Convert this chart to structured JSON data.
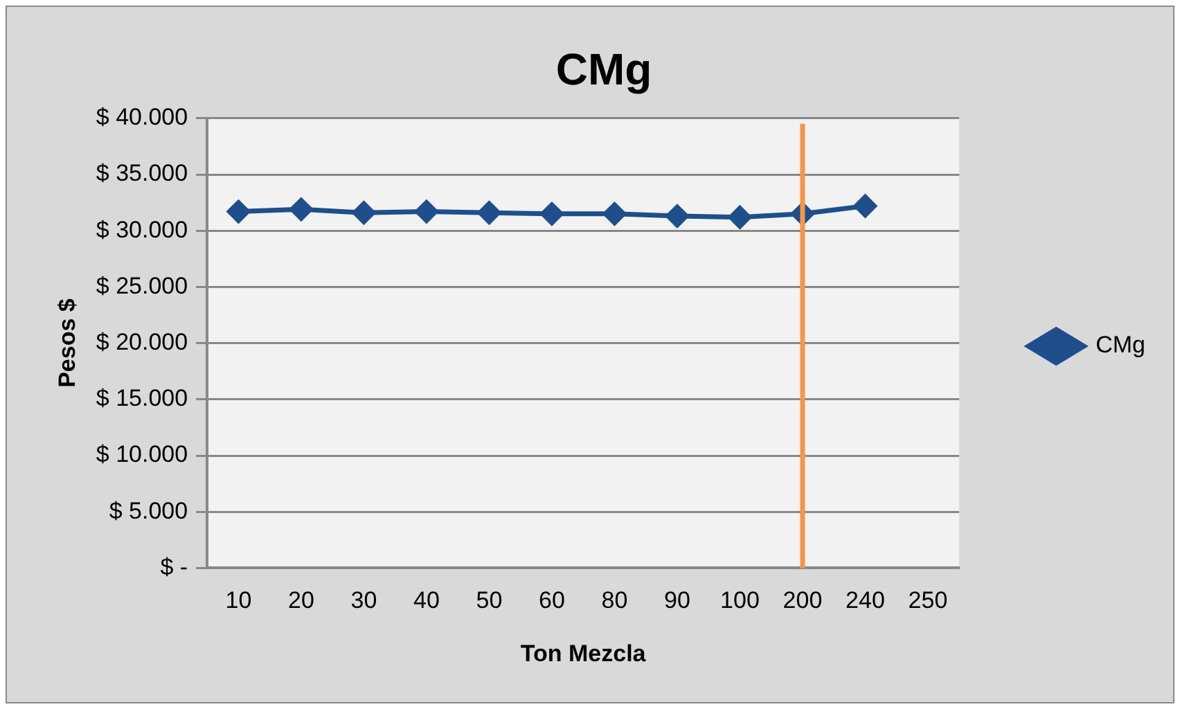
{
  "chart_data": {
    "type": "line",
    "title": "CMg",
    "xlabel": "Ton Mezcla",
    "ylabel": "Pesos $",
    "categories": [
      "10",
      "20",
      "30",
      "40",
      "50",
      "60",
      "80",
      "90",
      "100",
      "200",
      "240",
      "250"
    ],
    "series": [
      {
        "name": "CMg",
        "color": "#1f4e8c",
        "values": [
          31700,
          31900,
          31600,
          31700,
          31600,
          31500,
          31500,
          31300,
          31200,
          31500,
          32200,
          null
        ]
      }
    ],
    "ylim": [
      0,
      40000
    ],
    "yticks": [
      {
        "value": 0,
        "label": "$ -"
      },
      {
        "value": 5000,
        "label": "$ 5.000"
      },
      {
        "value": 10000,
        "label": "$ 10.000"
      },
      {
        "value": 15000,
        "label": "$ 15.000"
      },
      {
        "value": 20000,
        "label": "$ 20.000"
      },
      {
        "value": 25000,
        "label": "$ 25.000"
      },
      {
        "value": 30000,
        "label": "$ 30.000"
      },
      {
        "value": 35000,
        "label": "$ 35.000"
      },
      {
        "value": 40000,
        "label": "$ 40.000"
      }
    ],
    "ref_lines": [
      {
        "axis": "x",
        "value": "200",
        "color": "#f79646"
      }
    ],
    "grid": "y",
    "legend": "right",
    "marker": "diamond",
    "line_style": "solid"
  }
}
